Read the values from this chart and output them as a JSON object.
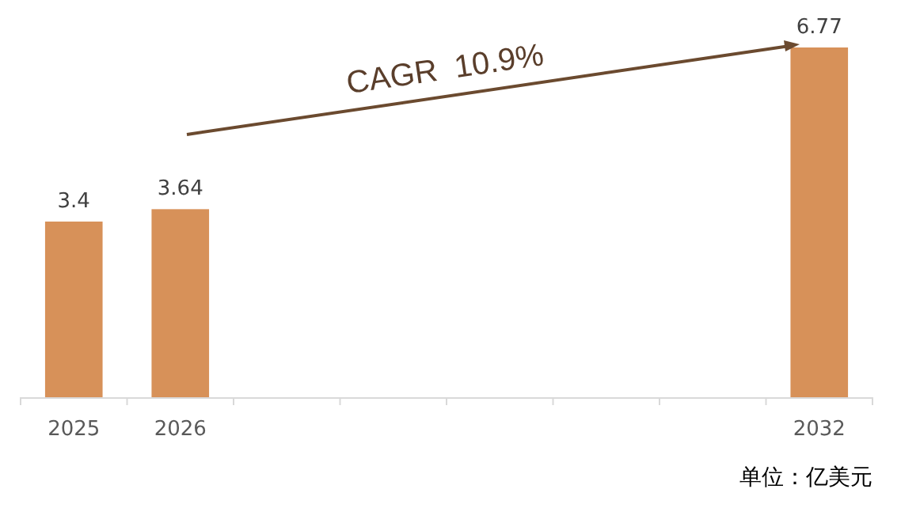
{
  "chart_data": {
    "type": "bar",
    "categories": [
      "2025",
      "2026",
      null,
      null,
      null,
      null,
      null,
      "2032"
    ],
    "values": [
      3.4,
      3.64,
      null,
      null,
      null,
      null,
      null,
      6.77
    ],
    "color": "#d79159",
    "data_labels": true,
    "annotations": [
      "CAGR  10.9%",
      "单位：亿美元"
    ]
  }
}
